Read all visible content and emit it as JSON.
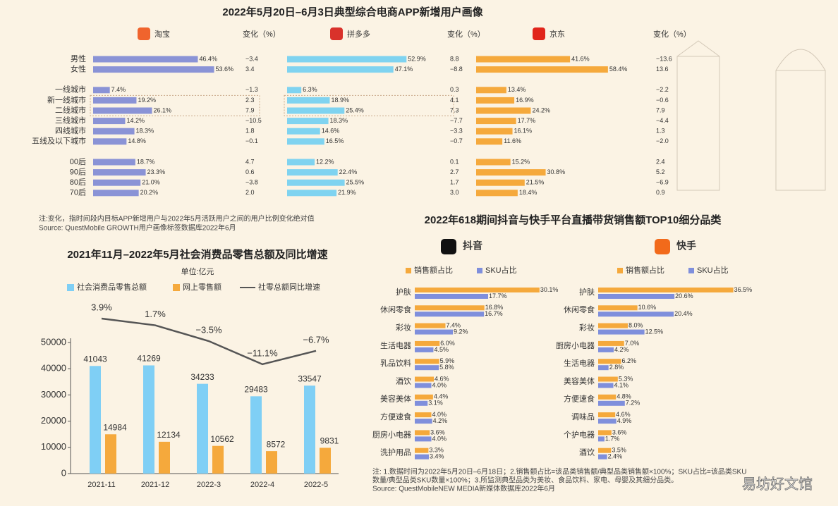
{
  "chart_data": [
    {
      "type": "bar",
      "orientation": "horizontal",
      "title": "2022年5月20日–6月3日典型综合电商APP新增用户画像",
      "change_header": "变化（%）",
      "categories": [
        "男性",
        "女性",
        null,
        "一线城市",
        "新一线城市",
        "二线城市",
        "三线城市",
        "四线城市",
        "五线及以下城市",
        null,
        "00后",
        "90后",
        "80后",
        "70后"
      ],
      "xlim": [
        0,
        80
      ],
      "series": [
        {
          "name": "淘宝",
          "color": "#8a93d6",
          "values": [
            46.4,
            53.6,
            null,
            7.4,
            19.2,
            26.1,
            14.2,
            18.3,
            14.8,
            null,
            18.7,
            23.3,
            21.0,
            20.2
          ],
          "value_labels": [
            "46.4%",
            "53.6%",
            null,
            "7.4%",
            "19.2%",
            "26.1%",
            "14.2%",
            "18.3%",
            "14.8%",
            null,
            "18.7%",
            "23.3%",
            "21.0%",
            "20.2%"
          ],
          "changes": [
            -3.4,
            3.4,
            null,
            -1.3,
            2.3,
            7.9,
            -10.5,
            1.8,
            -0.1,
            null,
            4.7,
            0.6,
            -3.8,
            2.0
          ],
          "change_labels": [
            "−3.4",
            "3.4",
            null,
            "−1.3",
            "2.3",
            "7.9",
            "−10.5",
            "1.8",
            "−0.1",
            null,
            "4.7",
            "0.6",
            "−3.8",
            "2.0"
          ]
        },
        {
          "name": "拼多多",
          "color": "#7fd3f0",
          "values": [
            52.9,
            47.1,
            null,
            6.3,
            18.9,
            25.4,
            18.3,
            14.6,
            16.5,
            null,
            12.2,
            22.4,
            25.5,
            21.9
          ],
          "value_labels": [
            "52.9%",
            "47.1%",
            null,
            "6.3%",
            "18.9%",
            "25.4%",
            "18.3%",
            "14.6%",
            "16.5%",
            null,
            "12.2%",
            "22.4%",
            "25.5%",
            "21.9%"
          ],
          "changes": [
            8.8,
            -8.8,
            null,
            0.3,
            4.1,
            7.3,
            -7.7,
            -3.3,
            -0.7,
            null,
            0.1,
            2.7,
            1.7,
            3.0
          ],
          "change_labels": [
            "8.8",
            "−8.8",
            null,
            "0.3",
            "4.1",
            "7.3",
            "−7.7",
            "−3.3",
            "−0.7",
            null,
            "0.1",
            "2.7",
            "1.7",
            "3.0"
          ]
        },
        {
          "name": "京东",
          "color": "#f5a93c",
          "values": [
            41.6,
            58.4,
            null,
            13.4,
            16.9,
            24.2,
            17.7,
            16.1,
            11.6,
            null,
            15.2,
            30.8,
            21.5,
            18.4
          ],
          "value_labels": [
            "41.6%",
            "58.4%",
            null,
            "13.4%",
            "16.9%",
            "24.2%",
            "17.7%",
            "16.1%",
            "11.6%",
            null,
            "15.2%",
            "30.8%",
            "21.5%",
            "18.4%"
          ],
          "changes": [
            -13.6,
            13.6,
            null,
            -2.2,
            -0.6,
            7.9,
            -4.4,
            1.3,
            -2.0,
            null,
            2.4,
            5.2,
            -6.9,
            0.9
          ],
          "change_labels": [
            "−13.6",
            "13.6",
            null,
            "−2.2",
            "−0.6",
            "7.9",
            "−4.4",
            "1.3",
            "−2.0",
            null,
            "2.4",
            "5.2",
            "−6.9",
            "0.9"
          ]
        }
      ],
      "notes": [
        "注:变化，指时间段内目标APP新增用户与2022年5月活跃用户之间的用户比例变化绝对值",
        "Source: QuestMobile GROWTH用户画像标签数据库2022年6月"
      ]
    },
    {
      "type": "bar",
      "title": "2021年11月–2022年5月社会消费品零售总额及同比增速",
      "unit": "单位:亿元",
      "categories": [
        "2021-11",
        "2021-12",
        "2022-3",
        "2022-4",
        "2022-5"
      ],
      "ylim": [
        0,
        50000
      ],
      "yticks": [
        0,
        10000,
        20000,
        30000,
        40000,
        50000
      ],
      "y2lim": [
        -47,
        9
      ],
      "series": [
        {
          "name": "社会消费品零售总额",
          "color": "#7fcff5",
          "values": [
            41043,
            41269,
            34233,
            29483,
            33547
          ]
        },
        {
          "name": "网上零售额",
          "color": "#f5a93c",
          "values": [
            14984,
            12134,
            10562,
            8572,
            9831
          ]
        },
        {
          "name": "社零总额同比增速",
          "type": "line",
          "axis": "y2",
          "color": "#555555",
          "values": [
            3.9,
            1.7,
            -3.5,
            -11.1,
            -6.7
          ],
          "value_labels": [
            "3.9%",
            "1.7%",
            "−3.5%",
            "−11.1%",
            "−6.7%"
          ]
        }
      ]
    },
    {
      "type": "bar",
      "orientation": "horizontal",
      "title": "2022年618期间抖音与快手平台直播带货销售额TOP10细分品类",
      "name": "抖音",
      "categories": [
        "护肤",
        "休闲零食",
        "彩妆",
        "生活电器",
        "乳品饮料",
        "酒饮",
        "美容美体",
        "方便速食",
        "厨房小电器",
        "洗护用品"
      ],
      "xlim": [
        0,
        40
      ],
      "series": [
        {
          "name": "销售额占比",
          "color": "#f5a93c",
          "values": [
            30.1,
            16.8,
            7.4,
            6.0,
            5.9,
            4.6,
            4.4,
            4.0,
            3.6,
            3.3
          ],
          "value_labels": [
            "30.1%",
            "16.8%",
            "7.4%",
            "6.0%",
            "5.9%",
            "4.6%",
            "4.4%",
            "4.0%",
            "3.6%",
            "3.3%"
          ]
        },
        {
          "name": "SKU占比",
          "color": "#7f8fdc",
          "values": [
            17.7,
            16.7,
            9.2,
            4.5,
            5.8,
            4.0,
            3.1,
            4.2,
            4.0,
            3.4
          ],
          "value_labels": [
            "17.7%",
            "16.7%",
            "9.2%",
            "4.5%",
            "5.8%",
            "4.0%",
            "3.1%",
            "4.2%",
            "4.0%",
            "3.4%"
          ]
        }
      ],
      "notes": [
        "注: 1.数据时间为2022年5月20日–6月18日；2.销售额占比=该品类销售额/典型品类销售额×100%；SKU占比=该品类SKU",
        "数量/典型品类SKU数量×100%；3.所监测典型品类为美妆、食品饮料、家电、母婴及其细分品类。",
        "Source: QuestMobileNEW MEDIA新媒体数据库2022年6月"
      ]
    },
    {
      "type": "bar",
      "orientation": "horizontal",
      "name": "快手",
      "categories": [
        "护肤",
        "休闲零食",
        "彩妆",
        "厨房小电器",
        "生活电器",
        "美容美体",
        "方便速食",
        "调味品",
        "个护电器",
        "酒饮"
      ],
      "xlim": [
        0,
        40
      ],
      "series": [
        {
          "name": "销售额占比",
          "color": "#f5a93c",
          "values": [
            36.5,
            10.6,
            8.0,
            7.0,
            6.2,
            5.3,
            4.8,
            4.6,
            3.6,
            3.5
          ],
          "value_labels": [
            "36.5%",
            "10.6%",
            "8.0%",
            "7.0%",
            "6.2%",
            "5.3%",
            "4.8%",
            "4.6%",
            "3.6%",
            "3.5%"
          ]
        },
        {
          "name": "SKU占比",
          "color": "#7f8fdc",
          "values": [
            20.6,
            20.4,
            12.5,
            4.2,
            2.8,
            4.1,
            7.2,
            4.9,
            1.7,
            2.4
          ],
          "value_labels": [
            "20.6%",
            "20.4%",
            "12.5%",
            "4.2%",
            "2.8%",
            "4.1%",
            "7.2%",
            "4.9%",
            "1.7%",
            "2.4%"
          ]
        }
      ]
    }
  ],
  "watermark": "易坊好文馆"
}
